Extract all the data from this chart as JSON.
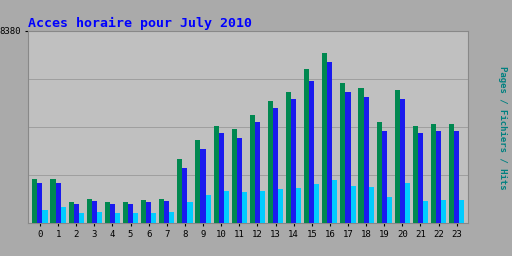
{
  "title": "Acces horaire pour July 2010",
  "ylabel": "Pages / Fichiers / Hits",
  "xlabel_values": [
    0,
    1,
    2,
    3,
    4,
    5,
    6,
    7,
    8,
    9,
    10,
    11,
    12,
    13,
    14,
    15,
    16,
    17,
    18,
    19,
    20,
    21,
    22,
    23
  ],
  "pages": [
    1900,
    1900,
    900,
    1050,
    900,
    900,
    1000,
    1050,
    2800,
    3600,
    4200,
    4100,
    4700,
    5300,
    5700,
    6700,
    7400,
    6100,
    5900,
    4400,
    5800,
    4200,
    4300,
    4300
  ],
  "fichiers": [
    1750,
    1750,
    820,
    950,
    820,
    820,
    900,
    950,
    2400,
    3200,
    3900,
    3700,
    4400,
    5000,
    5400,
    6200,
    7000,
    5700,
    5500,
    4000,
    5400,
    3900,
    4000,
    4000
  ],
  "hits": [
    550,
    700,
    420,
    480,
    420,
    420,
    440,
    450,
    900,
    1200,
    1400,
    1350,
    1380,
    1480,
    1520,
    1700,
    1850,
    1600,
    1550,
    1140,
    1750,
    950,
    980,
    1000
  ],
  "color_pages": "#008850",
  "color_fichiers": "#1a1aee",
  "color_hits": "#00ccff",
  "color_background": "#aaaaaa",
  "color_plot_bg": "#c0c0c0",
  "title_color": "#0000ff",
  "ylabel_color": "#008080",
  "ytick_label": "8380",
  "ymax": 8380,
  "bar_width": 0.28,
  "grid_levels": [
    2095,
    4190,
    6285
  ]
}
